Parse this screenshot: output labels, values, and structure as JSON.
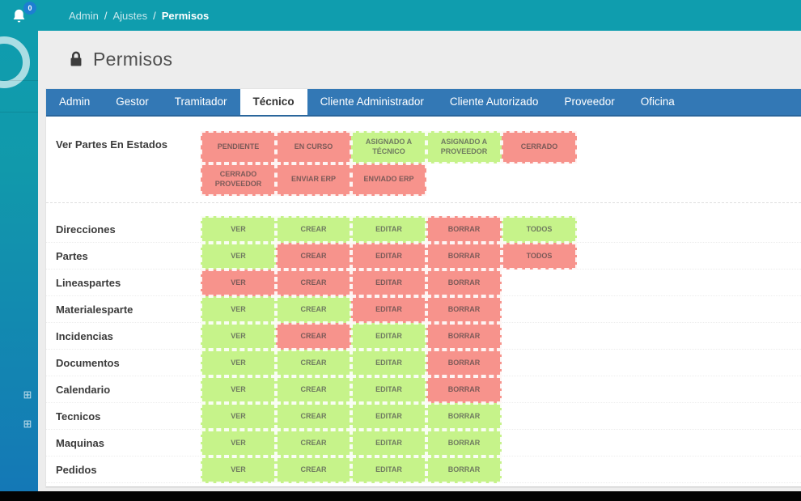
{
  "topbar": {
    "breadcrumb": {
      "items": [
        "Admin",
        "Ajustes",
        "Permisos"
      ],
      "separator": "/"
    },
    "notifications": {
      "count": "0"
    }
  },
  "page": {
    "title": "Permisos"
  },
  "tabs": [
    {
      "label": "Admin",
      "active": false
    },
    {
      "label": "Gestor",
      "active": false
    },
    {
      "label": "Tramitador",
      "active": false
    },
    {
      "label": "Técnico",
      "active": true
    },
    {
      "label": "Cliente Administrador",
      "active": false
    },
    {
      "label": "Cliente Autorizado",
      "active": false
    },
    {
      "label": "Proveedor",
      "active": false
    },
    {
      "label": "Oficina",
      "active": false
    }
  ],
  "estados": {
    "label": "Ver Partes En Estados",
    "buttons": [
      {
        "label": "PENDIENTE",
        "allowed": false
      },
      {
        "label": "EN CURSO",
        "allowed": false
      },
      {
        "label": "ASIGNADO A TÉCNICO",
        "allowed": true
      },
      {
        "label": "ASIGNADO A PROVEEDOR",
        "allowed": true
      },
      {
        "label": "CERRADO",
        "allowed": false
      },
      {
        "label": "CERRADO PROVEEDOR",
        "allowed": false
      },
      {
        "label": "ENVIAR ERP",
        "allowed": false
      },
      {
        "label": "ENVIADO ERP",
        "allowed": false
      }
    ]
  },
  "permissions": {
    "rows": [
      {
        "label": "Direcciones",
        "actions": [
          {
            "label": "VER",
            "allowed": true
          },
          {
            "label": "CREAR",
            "allowed": true
          },
          {
            "label": "EDITAR",
            "allowed": true
          },
          {
            "label": "BORRAR",
            "allowed": false
          },
          {
            "label": "TODOS",
            "allowed": true
          }
        ]
      },
      {
        "label": "Partes",
        "actions": [
          {
            "label": "VER",
            "allowed": true
          },
          {
            "label": "CREAR",
            "allowed": false
          },
          {
            "label": "EDITAR",
            "allowed": false
          },
          {
            "label": "BORRAR",
            "allowed": false
          },
          {
            "label": "TODOS",
            "allowed": false
          }
        ]
      },
      {
        "label": "Lineaspartes",
        "actions": [
          {
            "label": "VER",
            "allowed": false
          },
          {
            "label": "CREAR",
            "allowed": false
          },
          {
            "label": "EDITAR",
            "allowed": false
          },
          {
            "label": "BORRAR",
            "allowed": false
          }
        ]
      },
      {
        "label": "Materialesparte",
        "actions": [
          {
            "label": "VER",
            "allowed": true
          },
          {
            "label": "CREAR",
            "allowed": true
          },
          {
            "label": "EDITAR",
            "allowed": false
          },
          {
            "label": "BORRAR",
            "allowed": false
          }
        ]
      },
      {
        "label": "Incidencias",
        "actions": [
          {
            "label": "VER",
            "allowed": true
          },
          {
            "label": "CREAR",
            "allowed": false
          },
          {
            "label": "EDITAR",
            "allowed": true
          },
          {
            "label": "BORRAR",
            "allowed": false
          }
        ]
      },
      {
        "label": "Documentos",
        "actions": [
          {
            "label": "VER",
            "allowed": true
          },
          {
            "label": "CREAR",
            "allowed": true
          },
          {
            "label": "EDITAR",
            "allowed": true
          },
          {
            "label": "BORRAR",
            "allowed": false
          }
        ]
      },
      {
        "label": "Calendario",
        "actions": [
          {
            "label": "VER",
            "allowed": true
          },
          {
            "label": "CREAR",
            "allowed": true
          },
          {
            "label": "EDITAR",
            "allowed": true
          },
          {
            "label": "BORRAR",
            "allowed": false
          }
        ]
      },
      {
        "label": "Tecnicos",
        "actions": [
          {
            "label": "VER",
            "allowed": true
          },
          {
            "label": "CREAR",
            "allowed": true
          },
          {
            "label": "EDITAR",
            "allowed": true
          },
          {
            "label": "BORRAR",
            "allowed": true
          }
        ]
      },
      {
        "label": "Maquinas",
        "actions": [
          {
            "label": "VER",
            "allowed": true
          },
          {
            "label": "CREAR",
            "allowed": true
          },
          {
            "label": "EDITAR",
            "allowed": true
          },
          {
            "label": "BORRAR",
            "allowed": true
          }
        ]
      },
      {
        "label": "Pedidos",
        "actions": [
          {
            "label": "VER",
            "allowed": true
          },
          {
            "label": "CREAR",
            "allowed": true
          },
          {
            "label": "EDITAR",
            "allowed": true
          },
          {
            "label": "BORRAR",
            "allowed": true
          }
        ]
      }
    ]
  },
  "sidebar": {
    "expand_icons": [
      "plus-square-icon",
      "plus-square-icon"
    ]
  },
  "colors": {
    "topbar_teal": "#0f9dae",
    "sidebar_blue": "#1478b6",
    "tab_blue": "#3378b5",
    "badge_blue": "#1d7fd1",
    "allowed_green": "#c6f38a",
    "denied_red": "#f7938c"
  }
}
